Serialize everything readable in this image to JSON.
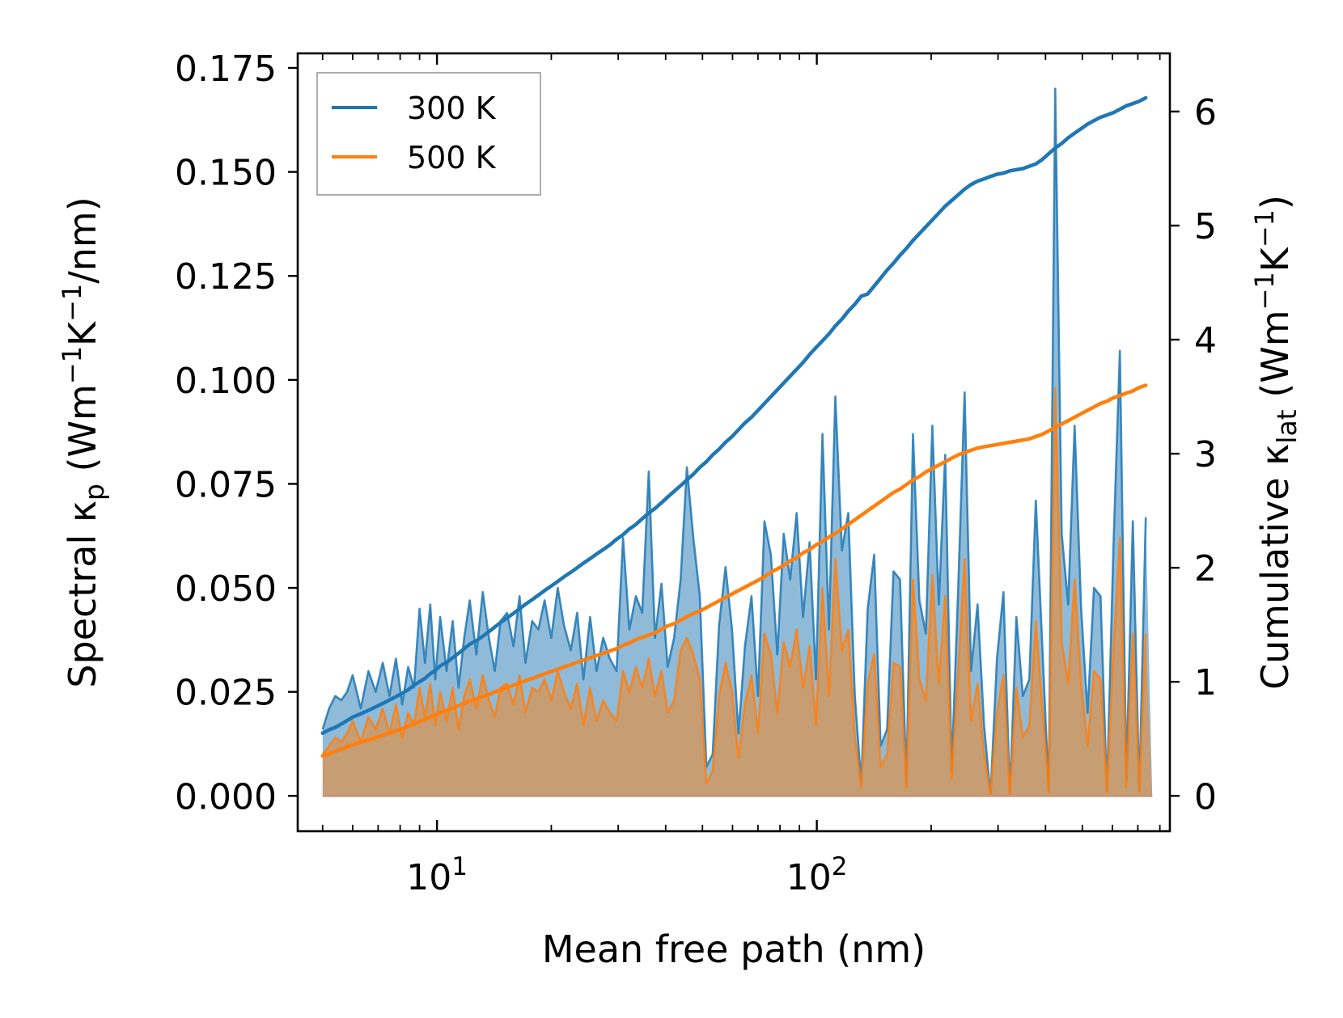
{
  "chart_data": {
    "type": "line",
    "xscale": "log",
    "xlabel": "Mean free path (nm)",
    "xlim": [
      4.3,
      850
    ],
    "x_major_ticks": [
      {
        "value": 10,
        "base": "10",
        "exp": "1"
      },
      {
        "value": 100,
        "base": "10",
        "exp": "2"
      }
    ],
    "ylabel_left": {
      "prefix": "Spectral κ",
      "sub": "p",
      "unit_open": " (Wm",
      "unit_exp1": "−1",
      "unit_mid": "K",
      "unit_exp2": "−1",
      "unit_close": "/nm)"
    },
    "ylim_left": [
      -0.0085,
      0.1785
    ],
    "yticks_left": [
      "0.000",
      "0.025",
      "0.050",
      "0.075",
      "0.100",
      "0.125",
      "0.150",
      "0.175"
    ],
    "ylabel_right": {
      "prefix": "Cumulative κ",
      "sub": "lat",
      "unit_open": " (Wm",
      "unit_exp1": "−1",
      "unit_mid": "K",
      "unit_exp2": "−1",
      "unit_close": ")"
    },
    "ylim_right": [
      -0.31,
      6.51
    ],
    "yticks_right": [
      "0",
      "1",
      "2",
      "3",
      "4",
      "5",
      "6"
    ],
    "colors": {
      "c300": "#1f77b4",
      "c500": "#ff7f0e",
      "fill300": "#1f77b4",
      "fill500": "#ff7f0e"
    },
    "legend": {
      "position": "top-left",
      "entries": [
        {
          "label": "300 K",
          "color": "#1f77b4"
        },
        {
          "label": "500 K",
          "color": "#ff7f0e"
        }
      ]
    },
    "x": [
      5.0,
      5.2,
      5.4,
      5.6,
      5.8,
      6.0,
      6.3,
      6.6,
      6.9,
      7.2,
      7.5,
      7.8,
      8.1,
      8.4,
      8.7,
      9.0,
      9.3,
      9.6,
      9.9,
      10.2,
      10.6,
      11.0,
      11.4,
      11.8,
      12.2,
      12.7,
      13.2,
      13.7,
      14.2,
      14.7,
      15.3,
      15.9,
      16.5,
      17.1,
      17.8,
      18.5,
      19.2,
      20.0,
      20.8,
      21.6,
      22.5,
      23.4,
      24.3,
      25.3,
      26.3,
      27.4,
      28.5,
      29.7,
      30.9,
      32.1,
      33.4,
      34.7,
      36.1,
      37.5,
      39.0,
      40.5,
      42.1,
      43.8,
      45.5,
      47.3,
      49.2,
      51.2,
      53.2,
      55.3,
      57.5,
      59.8,
      62.2,
      64.7,
      67.3,
      70.0,
      72.8,
      75.7,
      78.7,
      81.8,
      85.1,
      88.5,
      92.0,
      95.7,
      99.5,
      103.5,
      107.6,
      111.9,
      116.4,
      121.0,
      125.9,
      130.9,
      136.1,
      141.6,
      147.2,
      153.1,
      159.2,
      165.6,
      172.2,
      179.1,
      186.2,
      193.7,
      201.4,
      209.5,
      217.8,
      226.5,
      235.6,
      245.0,
      254.8,
      265.0,
      275.6,
      286.6,
      298.1,
      310.0,
      322.4,
      335.3,
      348.7,
      362.6,
      377.1,
      392.2,
      407.9,
      424.2,
      441.2,
      458.8,
      477.2,
      496.3,
      516.1,
      536.7,
      558.2,
      580.5,
      603.8,
      627.9,
      653.0,
      679.1,
      706.3,
      734.6,
      764.0
    ],
    "series": [
      {
        "name": "300 K",
        "spectral": [
          0.016,
          0.021,
          0.024,
          0.023,
          0.025,
          0.029,
          0.021,
          0.03,
          0.025,
          0.032,
          0.024,
          0.033,
          0.022,
          0.031,
          0.026,
          0.045,
          0.032,
          0.046,
          0.028,
          0.043,
          0.03,
          0.042,
          0.026,
          0.038,
          0.047,
          0.034,
          0.049,
          0.038,
          0.03,
          0.042,
          0.044,
          0.036,
          0.048,
          0.032,
          0.042,
          0.04,
          0.047,
          0.038,
          0.05,
          0.041,
          0.035,
          0.044,
          0.028,
          0.043,
          0.03,
          0.038,
          0.033,
          0.03,
          0.062,
          0.04,
          0.048,
          0.044,
          0.078,
          0.038,
          0.051,
          0.031,
          0.038,
          0.052,
          0.079,
          0.062,
          0.048,
          0.007,
          0.01,
          0.041,
          0.055,
          0.04,
          0.015,
          0.036,
          0.048,
          0.024,
          0.066,
          0.058,
          0.034,
          0.063,
          0.052,
          0.068,
          0.043,
          0.061,
          0.028,
          0.087,
          0.04,
          0.096,
          0.059,
          0.068,
          0.024,
          0.003,
          0.045,
          0.058,
          0.012,
          0.016,
          0.054,
          0.052,
          0.003,
          0.087,
          0.047,
          0.039,
          0.089,
          0.046,
          0.082,
          0.006,
          0.05,
          0.097,
          0.03,
          0.046,
          0.017,
          0.0,
          0.033,
          0.049,
          0.0,
          0.043,
          0.024,
          0.028,
          0.071,
          0.036,
          0.001,
          0.17,
          0.063,
          0.046,
          0.089,
          0.045,
          0.02,
          0.05,
          0.048,
          0.001,
          0.06,
          0.107,
          0.004,
          0.066,
          0.001,
          0.067
        ],
        "cumulative": [
          0.55,
          0.58,
          0.6,
          0.63,
          0.66,
          0.69,
          0.72,
          0.75,
          0.78,
          0.81,
          0.84,
          0.87,
          0.9,
          0.93,
          0.97,
          1.0,
          1.03,
          1.07,
          1.1,
          1.14,
          1.17,
          1.21,
          1.25,
          1.29,
          1.33,
          1.36,
          1.4,
          1.44,
          1.48,
          1.52,
          1.56,
          1.6,
          1.64,
          1.68,
          1.72,
          1.76,
          1.8,
          1.84,
          1.88,
          1.92,
          1.96,
          2.0,
          2.04,
          2.08,
          2.12,
          2.16,
          2.2,
          2.25,
          2.29,
          2.34,
          2.38,
          2.43,
          2.48,
          2.52,
          2.57,
          2.62,
          2.67,
          2.72,
          2.77,
          2.82,
          2.88,
          2.93,
          2.99,
          3.04,
          3.1,
          3.15,
          3.21,
          3.27,
          3.32,
          3.38,
          3.44,
          3.5,
          3.56,
          3.62,
          3.68,
          3.74,
          3.8,
          3.87,
          3.93,
          3.99,
          4.05,
          4.12,
          4.18,
          4.25,
          4.31,
          4.38,
          4.4,
          4.47,
          4.54,
          4.61,
          4.67,
          4.74,
          4.8,
          4.87,
          4.93,
          4.99,
          5.05,
          5.11,
          5.17,
          5.22,
          5.27,
          5.32,
          5.36,
          5.39,
          5.41,
          5.43,
          5.45,
          5.46,
          5.48,
          5.49,
          5.5,
          5.52,
          5.54,
          5.58,
          5.63,
          5.68,
          5.72,
          5.77,
          5.81,
          5.85,
          5.89,
          5.92,
          5.95,
          5.97,
          5.99,
          6.02,
          6.05,
          6.07,
          6.09,
          6.12
        ]
      },
      {
        "name": "500 K",
        "spectral": [
          0.01,
          0.012,
          0.014,
          0.013,
          0.015,
          0.018,
          0.013,
          0.019,
          0.016,
          0.021,
          0.015,
          0.022,
          0.014,
          0.02,
          0.017,
          0.026,
          0.019,
          0.027,
          0.017,
          0.025,
          0.018,
          0.026,
          0.016,
          0.024,
          0.028,
          0.021,
          0.029,
          0.023,
          0.019,
          0.026,
          0.027,
          0.022,
          0.029,
          0.02,
          0.026,
          0.025,
          0.028,
          0.023,
          0.03,
          0.025,
          0.021,
          0.027,
          0.017,
          0.026,
          0.018,
          0.023,
          0.02,
          0.018,
          0.03,
          0.025,
          0.031,
          0.026,
          0.033,
          0.024,
          0.03,
          0.02,
          0.023,
          0.035,
          0.038,
          0.034,
          0.028,
          0.003,
          0.006,
          0.024,
          0.032,
          0.025,
          0.009,
          0.022,
          0.029,
          0.015,
          0.039,
          0.034,
          0.02,
          0.037,
          0.031,
          0.04,
          0.026,
          0.036,
          0.017,
          0.05,
          0.024,
          0.057,
          0.035,
          0.04,
          0.014,
          0.002,
          0.027,
          0.034,
          0.007,
          0.01,
          0.032,
          0.031,
          0.002,
          0.052,
          0.028,
          0.023,
          0.053,
          0.027,
          0.048,
          0.004,
          0.03,
          0.057,
          0.018,
          0.027,
          0.01,
          0.0,
          0.02,
          0.029,
          0.0,
          0.026,
          0.014,
          0.017,
          0.042,
          0.021,
          0.001,
          0.098,
          0.037,
          0.027,
          0.052,
          0.027,
          0.012,
          0.03,
          0.028,
          0.001,
          0.035,
          0.062,
          0.002,
          0.039,
          0.001,
          0.039
        ],
        "cumulative": [
          0.35,
          0.37,
          0.39,
          0.41,
          0.43,
          0.45,
          0.47,
          0.49,
          0.51,
          0.53,
          0.55,
          0.57,
          0.59,
          0.61,
          0.63,
          0.65,
          0.67,
          0.69,
          0.71,
          0.73,
          0.75,
          0.77,
          0.79,
          0.81,
          0.83,
          0.85,
          0.87,
          0.89,
          0.91,
          0.93,
          0.95,
          0.97,
          0.99,
          1.01,
          1.03,
          1.05,
          1.07,
          1.09,
          1.11,
          1.13,
          1.15,
          1.17,
          1.19,
          1.21,
          1.23,
          1.25,
          1.27,
          1.29,
          1.32,
          1.34,
          1.37,
          1.39,
          1.41,
          1.43,
          1.46,
          1.49,
          1.51,
          1.54,
          1.57,
          1.6,
          1.62,
          1.65,
          1.68,
          1.71,
          1.74,
          1.77,
          1.8,
          1.83,
          1.86,
          1.89,
          1.92,
          1.96,
          1.99,
          2.02,
          2.06,
          2.09,
          2.13,
          2.16,
          2.2,
          2.23,
          2.27,
          2.3,
          2.34,
          2.38,
          2.42,
          2.46,
          2.5,
          2.54,
          2.58,
          2.62,
          2.66,
          2.69,
          2.73,
          2.77,
          2.8,
          2.84,
          2.87,
          2.9,
          2.93,
          2.96,
          2.99,
          3.01,
          3.03,
          3.05,
          3.06,
          3.07,
          3.08,
          3.09,
          3.1,
          3.11,
          3.12,
          3.13,
          3.15,
          3.17,
          3.2,
          3.23,
          3.26,
          3.29,
          3.32,
          3.35,
          3.38,
          3.41,
          3.44,
          3.46,
          3.49,
          3.51,
          3.53,
          3.55,
          3.58,
          3.6
        ]
      }
    ]
  }
}
